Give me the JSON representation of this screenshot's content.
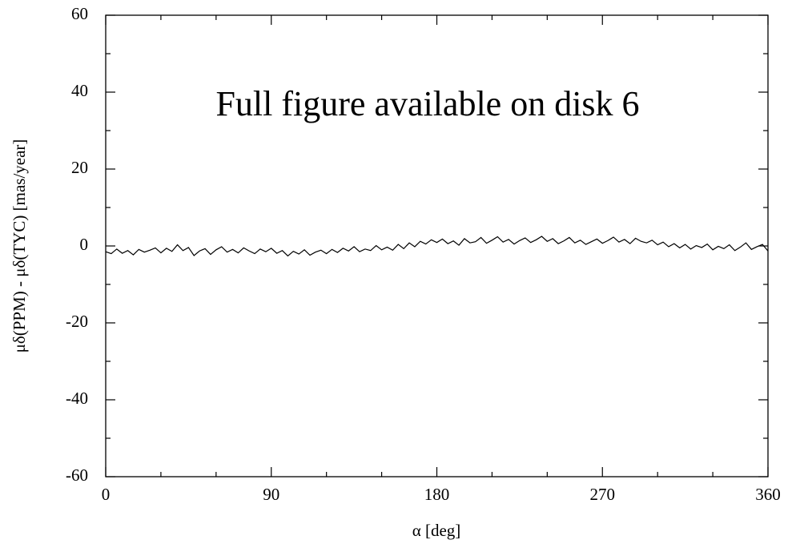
{
  "chart_data": {
    "type": "line",
    "annotation": "Full figure available on disk 6",
    "xlabel": "α [deg]",
    "ylabel": "μδ(PPM) - μδ(TYC) [mas/year]",
    "x": [
      0,
      3,
      6,
      9,
      12,
      15,
      18,
      21,
      24,
      27,
      30,
      33,
      36,
      39,
      42,
      45,
      48,
      51,
      54,
      57,
      60,
      63,
      66,
      69,
      72,
      75,
      78,
      81,
      84,
      87,
      90,
      93,
      96,
      99,
      102,
      105,
      108,
      111,
      114,
      117,
      120,
      123,
      126,
      129,
      132,
      135,
      138,
      141,
      144,
      147,
      150,
      153,
      156,
      159,
      162,
      165,
      168,
      171,
      174,
      177,
      180,
      183,
      186,
      189,
      192,
      195,
      198,
      201,
      204,
      207,
      210,
      213,
      216,
      219,
      222,
      225,
      228,
      231,
      234,
      237,
      240,
      243,
      246,
      249,
      252,
      255,
      258,
      261,
      264,
      267,
      270,
      273,
      276,
      279,
      282,
      285,
      288,
      291,
      294,
      297,
      300,
      303,
      306,
      309,
      312,
      315,
      318,
      321,
      324,
      327,
      330,
      333,
      336,
      339,
      342,
      345,
      348,
      351,
      354,
      357,
      360
    ],
    "series": [
      {
        "color": "#000000",
        "values": [
          -1.5,
          -2,
          -0.8,
          -1.9,
          -1.2,
          -2.3,
          -0.9,
          -1.6,
          -1.1,
          -0.5,
          -1.8,
          -0.6,
          -1.4,
          0.3,
          -1.2,
          -0.4,
          -2.5,
          -1.3,
          -0.7,
          -2.2,
          -1.0,
          -0.2,
          -1.6,
          -0.9,
          -1.8,
          -0.5,
          -1.3,
          -2.0,
          -0.8,
          -1.5,
          -0.6,
          -1.9,
          -1.2,
          -2.6,
          -1.4,
          -2.1,
          -1.0,
          -2.4,
          -1.6,
          -1.1,
          -2.0,
          -0.9,
          -1.7,
          -0.6,
          -1.3,
          -0.2,
          -1.5,
          -0.8,
          -1.2,
          0.1,
          -1.0,
          -0.3,
          -1.1,
          0.4,
          -0.7,
          0.8,
          -0.2,
          1.2,
          0.5,
          1.6,
          0.9,
          1.8,
          0.6,
          1.3,
          0.2,
          1.9,
          0.8,
          1.1,
          2.2,
          0.7,
          1.5,
          2.4,
          1.0,
          1.7,
          0.5,
          1.4,
          2.1,
          0.9,
          1.6,
          2.5,
          1.2,
          1.9,
          0.6,
          1.3,
          2.2,
          0.8,
          1.5,
          0.4,
          1.1,
          1.8,
          0.7,
          1.4,
          2.3,
          1.0,
          1.7,
          0.6,
          2.0,
          1.2,
          0.8,
          1.5,
          0.3,
          1.0,
          -0.2,
          0.6,
          -0.5,
          0.4,
          -0.8,
          0.1,
          -0.4,
          0.5,
          -1.0,
          -0.1,
          -0.7,
          0.3,
          -1.2,
          -0.3,
          0.8,
          -0.9,
          -0.2,
          0.4,
          -1.3
        ]
      }
    ],
    "xlim": [
      0,
      360
    ],
    "xticks": [
      0,
      90,
      180,
      270,
      360
    ],
    "xminorticks": [
      30,
      60,
      120,
      150,
      210,
      240,
      300,
      330
    ],
    "ylim": [
      -60,
      60
    ],
    "yticks": [
      -60,
      -40,
      -20,
      0,
      20,
      40,
      60
    ],
    "yminorticks": [
      -50,
      -30,
      -10,
      10,
      30,
      50
    ],
    "annotation_color": "#0000ff"
  }
}
